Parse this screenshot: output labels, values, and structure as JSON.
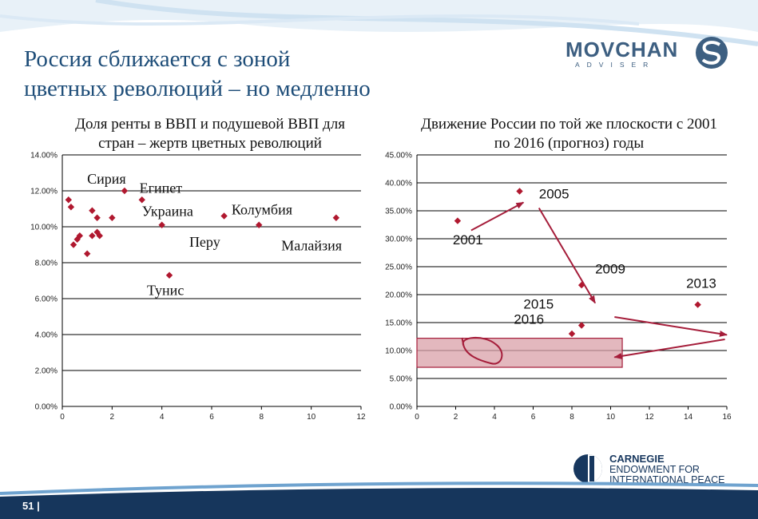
{
  "slide": {
    "title_line1": "Россия сближается с зоной",
    "title_line2": "цветных революций – но медленно",
    "page_number": "51 |",
    "logo": {
      "text": "MOVCHAN",
      "subtitle": "ADVISER",
      "mark": "S"
    },
    "carnegie": {
      "line1": "CARNEGIE",
      "line2": "ENDOWMENT FOR",
      "line3": "INTERNATIONAL PEACE"
    },
    "colors": {
      "title": "#1f4e79",
      "marker": "#b0182f",
      "arrow": "#a51d3a",
      "band": "#d9a0a8",
      "footer": "#16365c"
    }
  },
  "chart_data": [
    {
      "type": "scatter",
      "title_line1": "Доля ренты в ВВП и подушевой ВВП для",
      "title_line2": "стран – жертв цветных революций",
      "xlim": [
        0,
        12
      ],
      "ylim": [
        0,
        14
      ],
      "xticks": [
        0,
        2,
        4,
        6,
        8,
        10,
        12
      ],
      "yticks": [
        0,
        2,
        4,
        6,
        8,
        10,
        12,
        14
      ],
      "y_format": "percent",
      "grid": "horizontal",
      "points": [
        {
          "x": 0.25,
          "y": 11.5
        },
        {
          "x": 0.35,
          "y": 11.1
        },
        {
          "x": 0.45,
          "y": 9.0
        },
        {
          "x": 0.6,
          "y": 9.3
        },
        {
          "x": 0.7,
          "y": 9.5
        },
        {
          "x": 1.0,
          "y": 8.5
        },
        {
          "x": 1.2,
          "y": 10.9
        },
        {
          "x": 1.2,
          "y": 9.5
        },
        {
          "x": 1.4,
          "y": 10.5
        },
        {
          "x": 1.4,
          "y": 9.7
        },
        {
          "x": 1.5,
          "y": 9.5
        },
        {
          "x": 2.0,
          "y": 10.5
        },
        {
          "x": 2.5,
          "y": 12.0
        },
        {
          "x": 3.2,
          "y": 11.5
        },
        {
          "x": 4.0,
          "y": 10.1
        },
        {
          "x": 4.3,
          "y": 7.3
        },
        {
          "x": 6.5,
          "y": 10.6
        },
        {
          "x": 7.9,
          "y": 10.1
        },
        {
          "x": 11.0,
          "y": 10.5
        }
      ],
      "annotations": [
        {
          "text": "Сирия",
          "x": 1.0,
          "y": 12.4
        },
        {
          "text": "Египет",
          "x": 3.1,
          "y": 11.9
        },
        {
          "text": "Украина",
          "x": 3.2,
          "y": 10.6
        },
        {
          "text": "Колумбия",
          "x": 6.8,
          "y": 10.7
        },
        {
          "text": "Перу",
          "x": 5.1,
          "y": 8.9
        },
        {
          "text": "Малайзия",
          "x": 8.8,
          "y": 8.7
        },
        {
          "text": "Тунис",
          "x": 3.4,
          "y": 6.2
        }
      ]
    },
    {
      "type": "scatter",
      "title_line1": "Движение России по той же плоскости с 2001",
      "title_line2": "по 2016 (прогноз) годы",
      "xlim": [
        0,
        16
      ],
      "ylim": [
        0,
        45
      ],
      "xticks": [
        0,
        2,
        4,
        6,
        8,
        10,
        12,
        14,
        16
      ],
      "yticks": [
        0,
        5,
        10,
        15,
        20,
        25,
        30,
        35,
        40,
        45
      ],
      "y_format": "percent",
      "grid": "horizontal",
      "points": [
        {
          "x": 2.1,
          "y": 33.2
        },
        {
          "x": 5.3,
          "y": 38.5
        },
        {
          "x": 8.5,
          "y": 21.7
        },
        {
          "x": 14.5,
          "y": 18.2
        },
        {
          "x": 8.5,
          "y": 14.5
        },
        {
          "x": 8.0,
          "y": 13.0
        }
      ],
      "annotations": [
        {
          "text": "2001",
          "x": 1.85,
          "y": 29.0
        },
        {
          "text": "2005",
          "x": 6.3,
          "y": 37.2
        },
        {
          "text": "2009",
          "x": 9.2,
          "y": 23.8
        },
        {
          "text": "2013",
          "x": 13.9,
          "y": 21.2
        },
        {
          "text": "2015",
          "x": 5.5,
          "y": 17.5
        },
        {
          "text": "2016",
          "x": 5.0,
          "y": 14.8
        }
      ],
      "arrows": [
        {
          "x1": 2.8,
          "y1": 31.5,
          "x2": 5.5,
          "y2": 36.5
        },
        {
          "x1": 6.3,
          "y1": 35.5,
          "x2": 9.2,
          "y2": 18.5
        },
        {
          "x1": 10.2,
          "y1": 16.0,
          "x2": 16.0,
          "y2": 12.8
        },
        {
          "x1": 15.9,
          "y1": 12.0,
          "x2": 10.2,
          "y2": 8.8
        }
      ],
      "band": {
        "x0": 0,
        "x1": 10.6,
        "y0": 7.0,
        "y1": 12.2
      },
      "loop_center": {
        "x": 3.4,
        "y": 10.0
      }
    }
  ]
}
